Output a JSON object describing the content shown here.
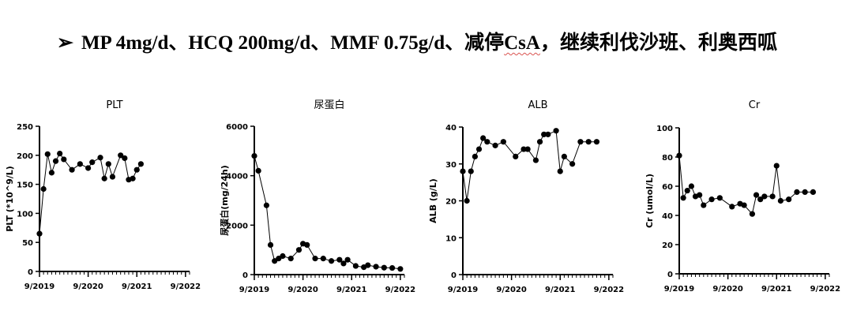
{
  "headline": {
    "bullet": "➢",
    "text_before": "MP 4mg/d、HCQ 200mg/d、MMF 0.75g/d、减停",
    "text_marked": "CsA",
    "text_after": "，继续利伐沙班、利奥西呱"
  },
  "chart_data": [
    {
      "type": "line",
      "title": "PLT",
      "ylabel": "PLT (*10^9/L)",
      "xlabel": "",
      "x_ticks": [
        "9/2019",
        "9/2020",
        "9/2021",
        "9/2022"
      ],
      "xlim": [
        "2019-09",
        "2022-10"
      ],
      "ylim": [
        0,
        250
      ],
      "y_ticks": [
        0,
        50,
        100,
        150,
        200,
        250
      ],
      "x": [
        "2019-09",
        "2019-10",
        "2019-11",
        "2019-12",
        "2020-01",
        "2020-02",
        "2020-03",
        "2020-05",
        "2020-07",
        "2020-09",
        "2020-10",
        "2020-12",
        "2021-01",
        "2021-02",
        "2021-03",
        "2021-05",
        "2021-06",
        "2021-07",
        "2021-08",
        "2021-09",
        "2021-10"
      ],
      "y": [
        65,
        142,
        202,
        170,
        190,
        203,
        193,
        175,
        185,
        178,
        188,
        196,
        160,
        185,
        163,
        200,
        195,
        158,
        160,
        175,
        185
      ]
    },
    {
      "type": "line",
      "title": "尿蛋白",
      "ylabel": "尿蛋白(mg/24h)",
      "xlabel": "",
      "x_ticks": [
        "9/2019",
        "9/2020",
        "9/2021",
        "9/2022"
      ],
      "xlim": [
        "2019-09",
        "2022-10"
      ],
      "ylim": [
        0,
        6000
      ],
      "y_ticks": [
        0,
        2000,
        4000,
        6000
      ],
      "x": [
        "2019-09",
        "2019-10",
        "2019-12",
        "2020-01",
        "2020-02",
        "2020-03",
        "2020-04",
        "2020-06",
        "2020-08",
        "2020-09",
        "2020-10",
        "2020-12",
        "2021-02",
        "2021-04",
        "2021-06",
        "2021-07",
        "2021-08",
        "2021-10",
        "2021-12",
        "2022-01",
        "2022-03",
        "2022-05",
        "2022-07",
        "2022-09"
      ],
      "y": [
        4800,
        4200,
        2800,
        1200,
        550,
        650,
        750,
        650,
        1000,
        1250,
        1200,
        650,
        650,
        550,
        600,
        450,
        600,
        350,
        300,
        380,
        320,
        280,
        270,
        230
      ]
    },
    {
      "type": "line",
      "title": "ALB",
      "ylabel": "ALB (g/L)",
      "xlabel": "",
      "x_ticks": [
        "9/2019",
        "9/2020",
        "9/2021",
        "9/2022"
      ],
      "xlim": [
        "2019-09",
        "2022-10"
      ],
      "ylim": [
        0,
        40
      ],
      "y_ticks": [
        0,
        10,
        20,
        30,
        40
      ],
      "x": [
        "2019-09",
        "2019-10",
        "2019-11",
        "2019-12",
        "2020-01",
        "2020-02",
        "2020-03",
        "2020-05",
        "2020-07",
        "2020-10",
        "2020-12",
        "2021-01",
        "2021-03",
        "2021-04",
        "2021-05",
        "2021-06",
        "2021-08",
        "2021-09",
        "2021-10",
        "2021-12",
        "2022-02",
        "2022-04",
        "2022-06"
      ],
      "y": [
        28,
        20,
        28,
        32,
        34,
        37,
        36,
        35,
        36,
        32,
        34,
        34,
        31,
        36,
        38,
        38,
        39,
        28,
        32,
        30,
        36,
        36,
        36
      ]
    },
    {
      "type": "line",
      "title": "Cr",
      "ylabel": "Cr (umol/L)",
      "xlabel": "",
      "x_ticks": [
        "9/2019",
        "9/2020",
        "9/2021",
        "9/2022"
      ],
      "xlim": [
        "2019-09",
        "2022-10"
      ],
      "ylim": [
        0,
        100
      ],
      "y_ticks": [
        0,
        20,
        40,
        60,
        80,
        100
      ],
      "x": [
        "2019-09",
        "2019-10",
        "2019-11",
        "2019-12",
        "2020-01",
        "2020-02",
        "2020-03",
        "2020-05",
        "2020-07",
        "2020-10",
        "2020-12",
        "2021-01",
        "2021-03",
        "2021-04",
        "2021-05",
        "2021-06",
        "2021-08",
        "2021-09",
        "2021-10",
        "2021-12",
        "2022-02",
        "2022-04",
        "2022-06"
      ],
      "y": [
        81,
        52,
        57,
        60,
        53,
        54,
        47,
        51,
        52,
        46,
        48,
        47,
        41,
        54,
        51,
        53,
        53,
        74,
        50,
        51,
        56,
        56,
        56
      ]
    }
  ]
}
